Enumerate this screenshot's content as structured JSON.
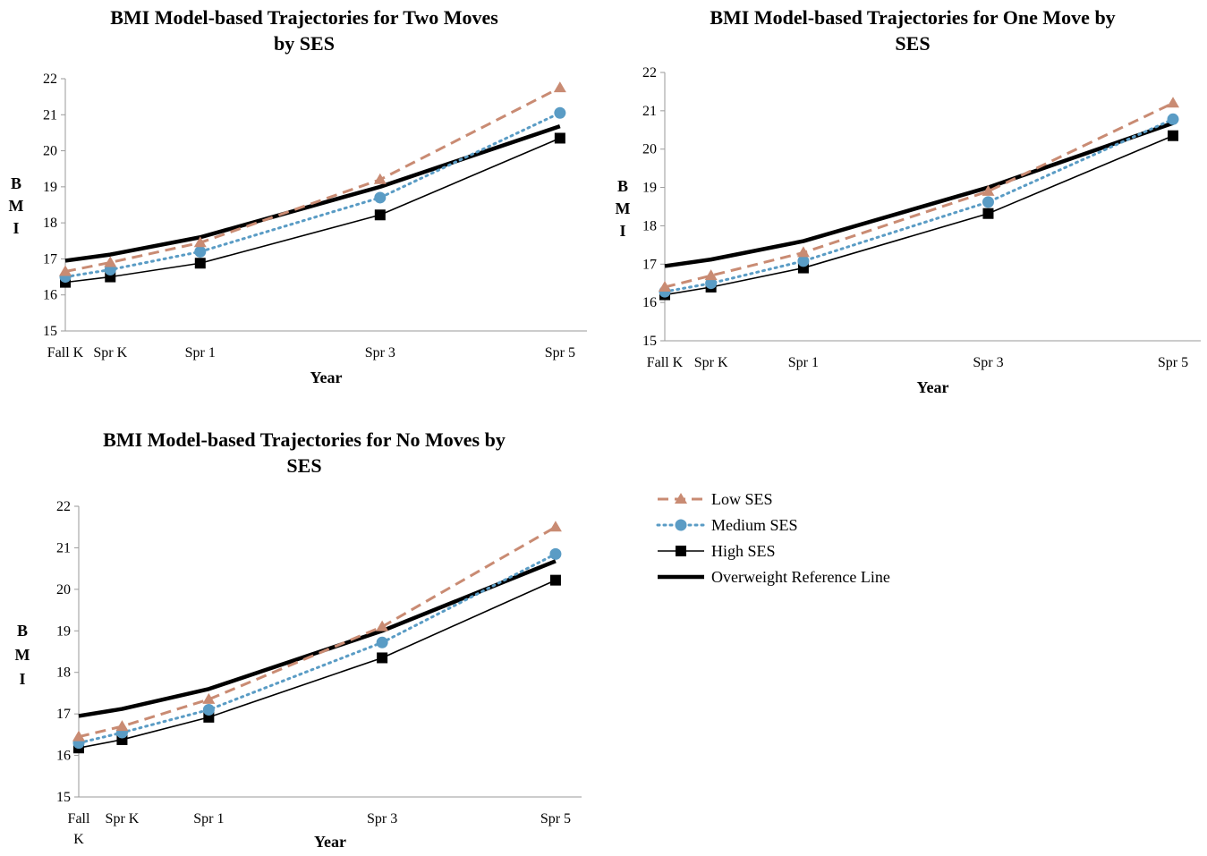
{
  "figure": {
    "legend": {
      "placement": "bottom-right",
      "entries": [
        {
          "name": "Low SES",
          "color": "#c98b73",
          "style": "dashed",
          "marker": "triangle"
        },
        {
          "name": "Medium SES",
          "color": "#5a9cc5",
          "style": "dotted",
          "marker": "circle"
        },
        {
          "name": "High SES",
          "color": "#000000",
          "style": "solid-thin",
          "marker": "square"
        },
        {
          "name": "Overweight Reference Line",
          "color": "#000000",
          "style": "solid-thick",
          "marker": "none"
        }
      ]
    }
  },
  "chart_data": [
    {
      "type": "line",
      "title_lines": [
        "BMI Model-based Trajectories for Two Moves",
        "by SES"
      ],
      "xlabel": "Year",
      "ylabel_letters": [
        "B",
        "M",
        "I"
      ],
      "ylim": [
        15,
        22
      ],
      "yticks": [
        15,
        16,
        17,
        18,
        19,
        20,
        21,
        22
      ],
      "grid": false,
      "x": [
        0,
        0.5,
        1.5,
        3.5,
        5.5
      ],
      "xlim": [
        0,
        5.8
      ],
      "xtick_labels": [
        [
          "Fall K"
        ],
        [
          "Spr K"
        ],
        [
          "Spr 1"
        ],
        [
          "Spr 3"
        ],
        [
          "Spr 5"
        ]
      ],
      "series": [
        {
          "name": "Low SES",
          "values": [
            16.65,
            16.9,
            17.45,
            19.2,
            21.75
          ]
        },
        {
          "name": "Medium SES",
          "values": [
            16.5,
            16.7,
            17.2,
            18.7,
            21.05
          ]
        },
        {
          "name": "High SES",
          "values": [
            16.35,
            16.5,
            16.88,
            18.22,
            20.35
          ]
        },
        {
          "name": "Overweight Reference Line",
          "values": [
            16.95,
            17.12,
            17.6,
            19.0,
            20.68
          ]
        }
      ]
    },
    {
      "type": "line",
      "title_lines": [
        "BMI Model-based Trajectories for One Move by",
        "SES"
      ],
      "xlabel": "Year",
      "ylabel_letters": [
        "B",
        "M",
        "I"
      ],
      "ylim": [
        15,
        22
      ],
      "yticks": [
        15,
        16,
        17,
        18,
        19,
        20,
        21,
        22
      ],
      "grid": false,
      "x": [
        0,
        0.5,
        1.5,
        3.5,
        5.5
      ],
      "xlim": [
        0,
        5.8
      ],
      "xtick_labels": [
        [
          "Fall K"
        ],
        [
          "Spr K"
        ],
        [
          "Spr 1"
        ],
        [
          "Spr 3"
        ],
        [
          "Spr 5"
        ]
      ],
      "series": [
        {
          "name": "Low SES",
          "values": [
            16.4,
            16.7,
            17.3,
            18.9,
            21.2
          ]
        },
        {
          "name": "Medium SES",
          "values": [
            16.28,
            16.5,
            17.08,
            18.62,
            20.78
          ]
        },
        {
          "name": "High SES",
          "values": [
            16.2,
            16.4,
            16.9,
            18.32,
            20.35
          ]
        },
        {
          "name": "Overweight Reference Line",
          "values": [
            16.95,
            17.12,
            17.6,
            19.0,
            20.68
          ]
        }
      ]
    },
    {
      "type": "line",
      "title_lines": [
        "BMI Model-based Trajectories for No Moves by",
        "SES"
      ],
      "xlabel": "Year",
      "ylabel_letters": [
        "B",
        "M",
        "I"
      ],
      "ylim": [
        15,
        22
      ],
      "yticks": [
        15,
        16,
        17,
        18,
        19,
        20,
        21,
        22
      ],
      "grid": false,
      "x": [
        0,
        0.5,
        1.5,
        3.5,
        5.5
      ],
      "xlim": [
        0,
        5.8
      ],
      "xtick_labels": [
        [
          "Fall",
          "K"
        ],
        [
          "Spr K"
        ],
        [
          "Spr 1"
        ],
        [
          "Spr 3"
        ],
        [
          "Spr 5"
        ]
      ],
      "series": [
        {
          "name": "Low SES",
          "values": [
            16.45,
            16.7,
            17.35,
            19.1,
            21.5
          ]
        },
        {
          "name": "Medium SES",
          "values": [
            16.3,
            16.55,
            17.1,
            18.72,
            20.85
          ]
        },
        {
          "name": "High SES",
          "values": [
            16.18,
            16.38,
            16.92,
            18.35,
            20.22
          ]
        },
        {
          "name": "Overweight Reference Line",
          "values": [
            16.95,
            17.12,
            17.6,
            19.0,
            20.68
          ]
        }
      ]
    }
  ]
}
